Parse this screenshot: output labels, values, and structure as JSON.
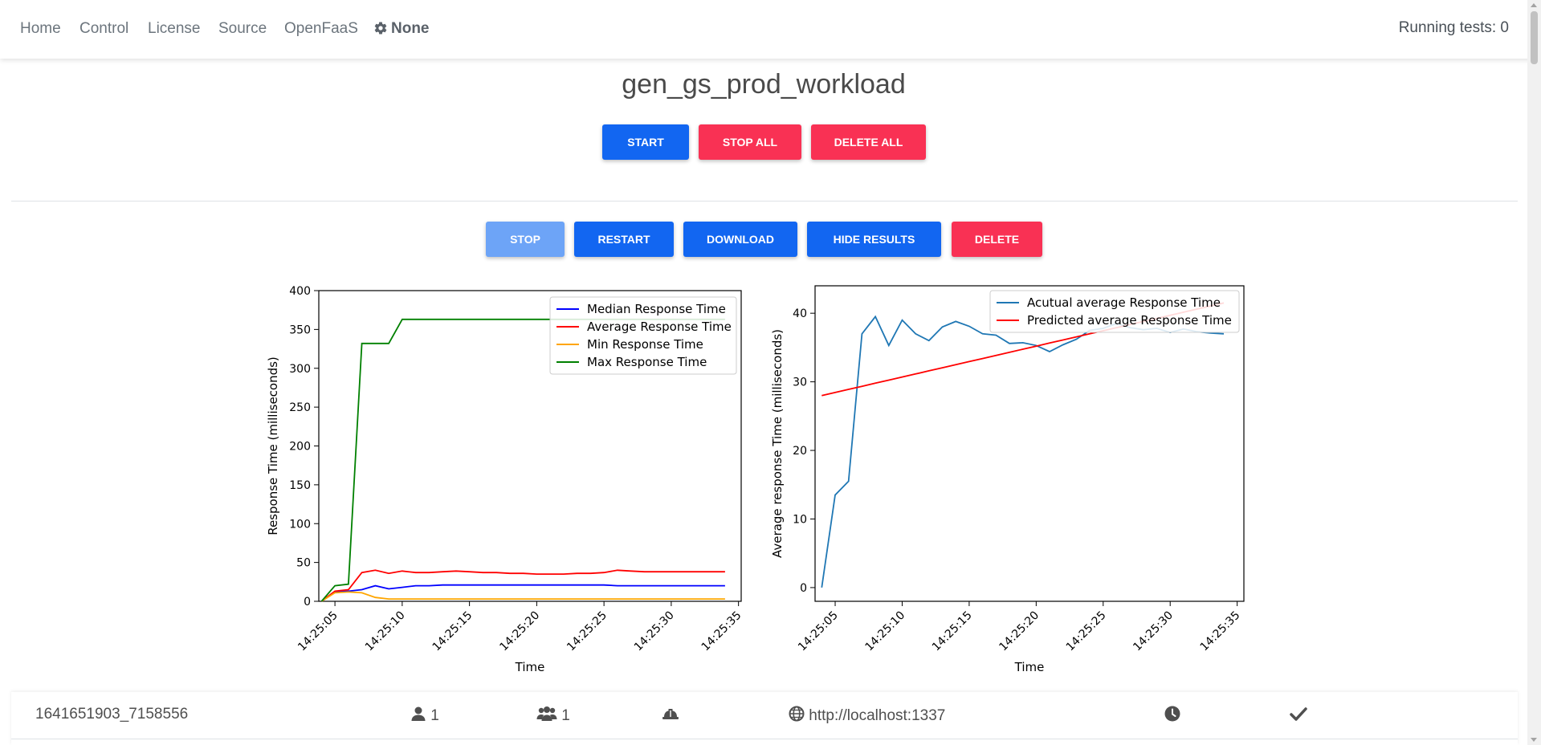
{
  "nav": {
    "items": [
      "Home",
      "Control",
      "License",
      "Source",
      "OpenFaaS"
    ],
    "settings_label": "None",
    "running_tests": "Running tests: 0"
  },
  "page": {
    "title": "gen_gs_prod_workload"
  },
  "global_actions": {
    "start": "START",
    "stop_all": "STOP ALL",
    "delete_all": "DELETE ALL"
  },
  "test_actions": {
    "stop": "STOP",
    "restart": "RESTART",
    "download": "DOWNLOAD",
    "hide_results": "HIDE RESULTS",
    "delete": "DELETE"
  },
  "colors": {
    "primary": "#1266f1",
    "danger": "#f93154",
    "disabled": "#6da4f7",
    "median": "#0000ff",
    "average": "#ff0000",
    "min": "#ffa500",
    "max": "#008000",
    "actual": "#1f77b4",
    "predicted": "#ff0000"
  },
  "chart_data": [
    {
      "type": "line",
      "title": "",
      "xlabel": "Time",
      "ylabel": "Response Time (milliseconds)",
      "ylim": [
        0,
        400
      ],
      "yticks": [
        0,
        50,
        100,
        150,
        200,
        250,
        300,
        350,
        400
      ],
      "xticks": [
        "14:25:05",
        "14:25:10",
        "14:25:15",
        "14:25:20",
        "14:25:25",
        "14:25:30",
        "14:25:35"
      ],
      "xlim_seconds": [
        3.8,
        35.2
      ],
      "legend_position": "top-right",
      "x_seconds": [
        4,
        5,
        6,
        7,
        8,
        9,
        10,
        11,
        12,
        13,
        14,
        15,
        16,
        17,
        18,
        19,
        20,
        21,
        22,
        23,
        24,
        25,
        26,
        27,
        28,
        29,
        30,
        31,
        32,
        33,
        34
      ],
      "series": [
        {
          "name": "Median Response Time",
          "color": "#0000ff",
          "values": [
            0,
            12,
            13,
            15,
            20,
            16,
            18,
            20,
            20,
            21,
            21,
            21,
            21,
            21,
            21,
            21,
            21,
            21,
            21,
            21,
            21,
            21,
            20,
            20,
            20,
            20,
            20,
            20,
            20,
            20,
            20
          ]
        },
        {
          "name": "Average Response Time",
          "color": "#ff0000",
          "values": [
            0,
            13,
            15,
            37,
            40,
            36,
            39,
            37,
            37,
            38,
            39,
            38,
            37,
            37,
            36,
            36,
            35,
            35,
            35,
            36,
            36,
            37,
            40,
            39,
            38,
            38,
            38,
            38,
            38,
            38,
            38
          ]
        },
        {
          "name": "Min Response Time",
          "color": "#ffa500",
          "values": [
            0,
            11,
            12,
            11,
            5,
            3,
            3,
            3,
            3,
            3,
            3,
            3,
            3,
            3,
            3,
            3,
            3,
            3,
            3,
            3,
            3,
            3,
            3,
            3,
            3,
            3,
            3,
            3,
            3,
            3,
            3
          ]
        },
        {
          "name": "Max Response Time",
          "color": "#008000",
          "values": [
            0,
            20,
            22,
            332,
            332,
            332,
            363,
            363,
            363,
            363,
            363,
            363,
            363,
            363,
            363,
            363,
            363,
            363,
            363,
            363,
            363,
            363,
            363,
            363,
            363,
            363,
            363,
            363,
            363,
            363,
            363
          ]
        }
      ]
    },
    {
      "type": "line",
      "title": "",
      "xlabel": "Time",
      "ylabel": "Average response Time (milliseconds)",
      "ylim": [
        -2,
        44
      ],
      "yticks": [
        0,
        10,
        20,
        30,
        40
      ],
      "xticks": [
        "14:25:05",
        "14:25:10",
        "14:25:15",
        "14:25:20",
        "14:25:25",
        "14:25:30",
        "14:25:35"
      ],
      "xlim_seconds": [
        3.5,
        35.5
      ],
      "legend_position": "top-right",
      "x_seconds": [
        4,
        5,
        6,
        7,
        8,
        9,
        10,
        11,
        12,
        13,
        14,
        15,
        16,
        17,
        18,
        19,
        20,
        21,
        22,
        23,
        24,
        25,
        26,
        27,
        28,
        29,
        30,
        31,
        32,
        33,
        34
      ],
      "series": [
        {
          "name": "Acutual average Response Time",
          "color": "#1f77b4",
          "values": [
            0,
            13.5,
            15.5,
            37,
            39.5,
            35.3,
            39,
            37,
            36,
            38,
            38.8,
            38.1,
            37,
            36.8,
            35.6,
            35.7,
            35.3,
            34.4,
            35.4,
            36.2,
            37.5,
            37.8,
            38.5,
            37.9,
            37.6,
            37.8,
            37.2,
            37.7,
            37.3,
            37.1,
            37
          ]
        },
        {
          "name": "Predicted average Response Time",
          "color": "#ff0000",
          "values": [
            28,
            28.45,
            28.9,
            29.35,
            29.8,
            30.25,
            30.7,
            31.15,
            31.6,
            32.05,
            32.5,
            32.95,
            33.4,
            33.85,
            34.3,
            34.75,
            35.2,
            35.65,
            36.1,
            36.55,
            37,
            37.45,
            37.9,
            38.35,
            38.8,
            39.25,
            39.7,
            40.15,
            40.6,
            41.05,
            41.5
          ]
        }
      ]
    }
  ],
  "test_row": {
    "id": "1641651903_7158556",
    "users": "1",
    "spawn_rate": "1",
    "host": "http://localhost:1337"
  }
}
